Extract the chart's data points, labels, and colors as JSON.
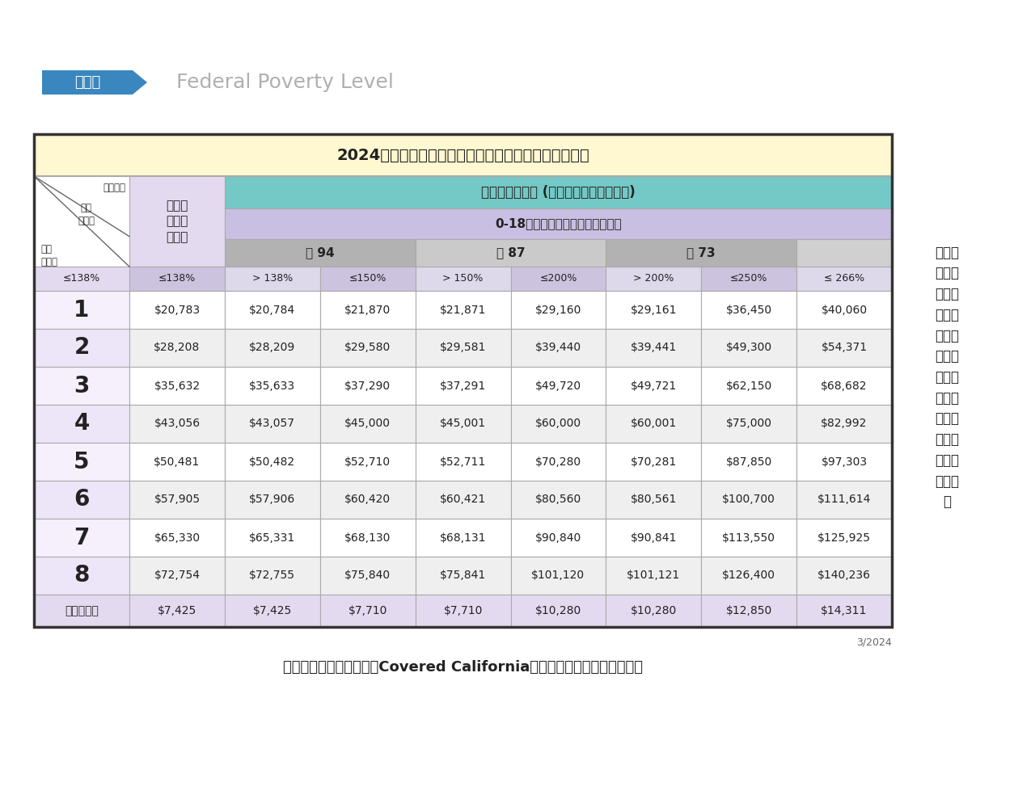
{
  "title_banner": "2024年可獲得聯邦政府健康保險補助的家庭年收入標準",
  "header_label": "收入表",
  "header_subtitle": "Federal Poverty Level",
  "adult_col_header": "成年人\n白卡收\n入上限",
  "col_header_subsidy": "可獲得保費補助 (銅、銀、金、鉑金計劃)",
  "col_header_child": "0-18歲的兒童獲得白卡的收入範圍",
  "col_header_yin94": "銀 94",
  "col_header_yin87": "銀 87",
  "col_header_yin73": "銀 73",
  "diag_label_top": "可選計劃",
  "diag_label_mid": "家庭\n年收入",
  "diag_label_bot": "家庭\n人口數",
  "right_note": "根據居\n住地區\n不同，\n保費補\n助標準\n不同，\n實際得\n到的補\n助金額\n以加州\n全保的\n系統為\n準",
  "bottom_note": "收入線僅供參考，仍需以Covered California以最新公佈的內容資訊為依據",
  "date_note": "3/2024",
  "col_pcts": [
    "≤138%",
    "> 138%",
    "≤150%",
    "> 150%",
    "≤200%",
    "> 200%",
    "≤250%",
    "≤ 266%"
  ],
  "row_labels": [
    "1",
    "2",
    "3",
    "4",
    "5",
    "6",
    "7",
    "8",
    "每增加一人"
  ],
  "data": [
    [
      "$20,783",
      "$20,784",
      "$21,870",
      "$21,871",
      "$29,160",
      "$29,161",
      "$36,450",
      "$40,060"
    ],
    [
      "$28,208",
      "$28,209",
      "$29,580",
      "$29,581",
      "$39,440",
      "$39,441",
      "$49,300",
      "$54,371"
    ],
    [
      "$35,632",
      "$35,633",
      "$37,290",
      "$37,291",
      "$49,720",
      "$49,721",
      "$62,150",
      "$68,682"
    ],
    [
      "$43,056",
      "$43,057",
      "$45,000",
      "$45,001",
      "$60,000",
      "$60,001",
      "$75,000",
      "$82,992"
    ],
    [
      "$50,481",
      "$50,482",
      "$52,710",
      "$52,711",
      "$70,280",
      "$70,281",
      "$87,850",
      "$97,303"
    ],
    [
      "$57,905",
      "$57,906",
      "$60,420",
      "$60,421",
      "$80,560",
      "$80,561",
      "$100,700",
      "$111,614"
    ],
    [
      "$65,330",
      "$65,331",
      "$68,130",
      "$68,131",
      "$90,840",
      "$90,841",
      "$113,550",
      "$125,925"
    ],
    [
      "$72,754",
      "$72,755",
      "$75,840",
      "$75,841",
      "$101,120",
      "$101,121",
      "$126,400",
      "$140,236"
    ],
    [
      "$7,425",
      "$7,425",
      "$7,710",
      "$7,710",
      "$10,280",
      "$10,280",
      "$12,850",
      "$14,311"
    ]
  ],
  "color_title_bg": "#fff8d0",
  "color_teal": "#74c8c5",
  "color_lavender": "#c9bfe2",
  "color_silver94": "#b2b2b2",
  "color_silver87": "#cacaca",
  "color_silver73": "#b2b2b2",
  "color_pct_a": "#ccc4de",
  "color_pct_b": "#ddd8ea",
  "color_adult_diag_bg": "#ffffff",
  "color_adult_header_bg": "#e4daf0",
  "color_row_odd": "#ffffff",
  "color_row_even": "#efefef",
  "color_last_row_bg": "#e4daf0",
  "color_last_adult_bg": "#e4daf0",
  "color_border": "#aaaaaa",
  "color_outer": "#333333",
  "color_text": "#222222",
  "color_blue_box": "#3a87bf",
  "color_subtitle": "#b0b0b0"
}
